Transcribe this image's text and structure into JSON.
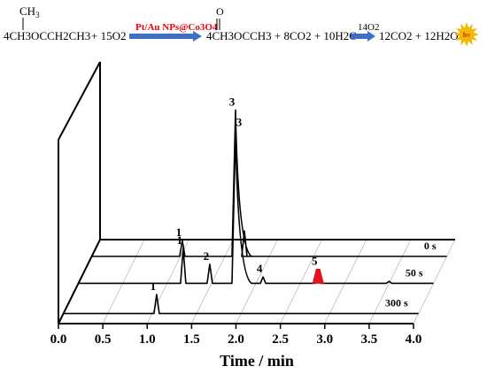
{
  "reaction": {
    "methyl_top": "CH",
    "methyl_sub": "3",
    "reactant": "4CH3OCCH2CH3",
    "plus_o2": "+ 15O2",
    "catalyst": "Pt/Au NPs@Co3O4",
    "carbonyl": "O",
    "product": "4CH3OCCH3 + 8CO2 + 10H2O",
    "second_reagent": "14O2",
    "final_products": "12CO2 + 12H2O +",
    "emission": "hv",
    "colors": {
      "catalyst_text": "#e8000b",
      "arrow": "#3e6fc4",
      "sun": "#f5b800"
    }
  },
  "chart_data": {
    "type": "line",
    "title": "",
    "xlabel": "Time / min",
    "ylabel": "",
    "xlim": [
      0.0,
      4.0
    ],
    "x_ticks": [
      "0.0",
      "0.5",
      "1.0",
      "1.5",
      "2.0",
      "2.5",
      "3.0",
      "3.5",
      "4.0"
    ],
    "layout": "3D waterfall, traces offset in depth",
    "series": [
      {
        "name": "0 s",
        "peaks": [
          {
            "label": "1",
            "x": 1.02,
            "height": 0.25
          },
          {
            "label": "3",
            "x": 1.62,
            "height": 2.3
          },
          {
            "label": "",
            "x": 1.72,
            "height": 0.4
          }
        ]
      },
      {
        "name": "50 s",
        "peaks": [
          {
            "label": "1",
            "x": 1.18,
            "height": 0.55
          },
          {
            "label": "2",
            "x": 1.48,
            "height": 0.3
          },
          {
            "label": "3",
            "x": 1.77,
            "height": 2.4
          },
          {
            "label": "4",
            "x": 2.08,
            "height": 0.1
          },
          {
            "label": "5",
            "x": 2.7,
            "height": 0.22,
            "highlight": true
          },
          {
            "label": "",
            "x": 3.5,
            "height": 0.03
          }
        ]
      },
      {
        "name": "300 s",
        "peaks": [
          {
            "label": "1",
            "x": 1.05,
            "height": 0.3
          }
        ]
      }
    ],
    "colors": {
      "trace": "#000000",
      "highlight": "#e0141e",
      "grid": "#b0b0b0"
    }
  }
}
